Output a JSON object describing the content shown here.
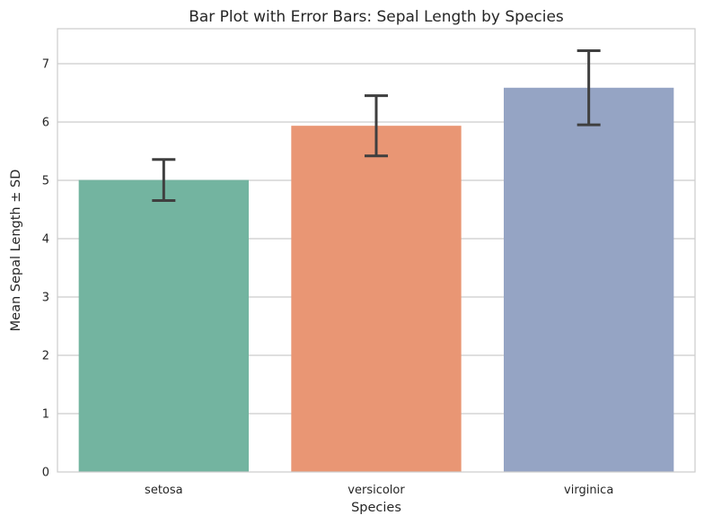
{
  "chart_data": {
    "type": "bar",
    "title": "Bar Plot with Error Bars: Sepal Length by Species",
    "xlabel": "Species",
    "ylabel": "Mean Sepal Length ± SD",
    "categories": [
      "setosa",
      "versicolor",
      "virginica"
    ],
    "values": [
      5.006,
      5.936,
      6.588
    ],
    "errors": [
      0.352,
      0.516,
      0.636
    ],
    "colors": [
      "#73b4a0",
      "#e99674",
      "#95a4c4"
    ],
    "ylim": [
      0,
      7.6
    ],
    "yticks": [
      "0",
      "1",
      "2",
      "3",
      "4",
      "5",
      "6",
      "7"
    ],
    "grid": true,
    "legend": "none"
  }
}
